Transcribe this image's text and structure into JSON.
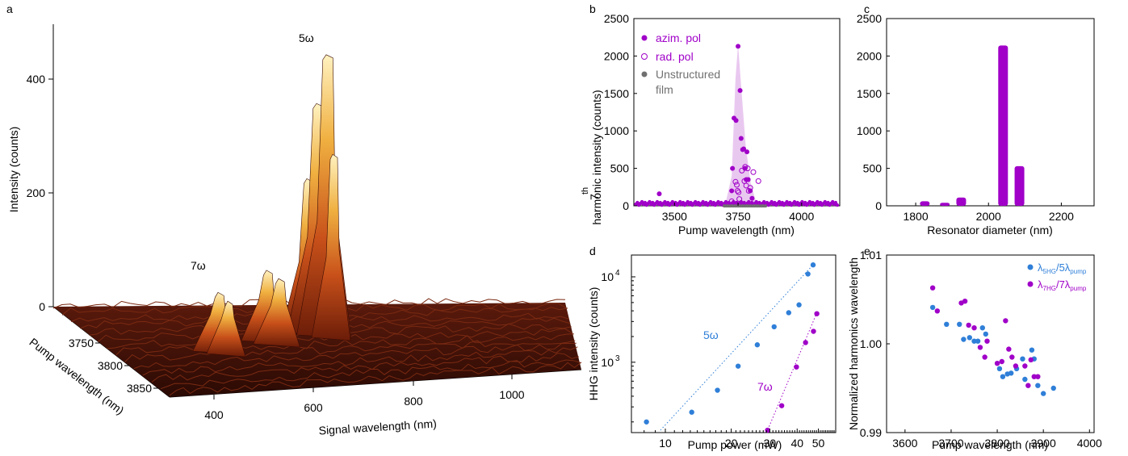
{
  "colors": {
    "purple": "#a000c8",
    "blue": "#2f7fd8",
    "gray": "#707070",
    "shade": "#e9c8f0"
  },
  "chart_data": [
    {
      "panel": "a",
      "type": "area",
      "xlabel": "Signal wavelength (nm)",
      "ylabel": "Pump wavelength (nm)",
      "zlabel": "Intensity (counts)",
      "x_ticks": [
        "400",
        "600",
        "800",
        "1000"
      ],
      "y_ticks": [
        "3750",
        "3800",
        "3850"
      ],
      "z_ticks": [
        "0",
        "200",
        "400"
      ],
      "annotations": [
        "5ω",
        "7ω"
      ],
      "peaks": [
        {
          "label": "5ω",
          "signal_wavelength": 750,
          "pump_wavelength": 3750,
          "intensity": 450
        },
        {
          "label": "7ω",
          "signal_wavelength": 535,
          "pump_wavelength": 3760,
          "intensity": 110
        }
      ]
    },
    {
      "panel": "b",
      "type": "scatter",
      "xlabel": "Pump wavelength (nm)",
      "ylabel_sup": "th",
      "ylabel_pre": "7",
      "ylabel": "harmonic intensity (counts)",
      "xlim": [
        3340,
        4150
      ],
      "ylim": [
        0,
        2500
      ],
      "x_ticks": [
        3500,
        3750,
        4000
      ],
      "y_ticks": [
        0,
        500,
        1000,
        1500,
        2000,
        2500
      ],
      "legend": [
        "azim. pol",
        "rad. pol",
        "Unstructured",
        "film"
      ],
      "series": [
        {
          "name": "azim. pol",
          "style": "filled",
          "points": [
            [
              3440,
              160
            ],
            [
              3725,
              200
            ],
            [
              3728,
              500
            ],
            [
              3734,
              1170
            ],
            [
              3742,
              1140
            ],
            [
              3750,
              2130
            ],
            [
              3758,
              1540
            ],
            [
              3762,
              900
            ],
            [
              3768,
              750
            ],
            [
              3772,
              760
            ],
            [
              3777,
              500
            ],
            [
              3782,
              350
            ],
            [
              3785,
              720
            ],
            [
              3790,
              350
            ],
            [
              3798,
              200
            ],
            [
              3805,
              100
            ]
          ]
        },
        {
          "name": "rad. pol",
          "style": "open",
          "points": [
            [
              3740,
              320
            ],
            [
              3745,
              280
            ],
            [
              3748,
              200
            ],
            [
              3752,
              180
            ],
            [
              3755,
              90
            ],
            [
              3765,
              470
            ],
            [
              3775,
              330
            ],
            [
              3778,
              520
            ],
            [
              3782,
              270
            ],
            [
              3788,
              500
            ],
            [
              3792,
              200
            ],
            [
              3798,
              240
            ],
            [
              3810,
              450
            ],
            [
              3830,
              330
            ],
            [
              3725,
              60
            ]
          ]
        }
      ],
      "baseline": {
        "name": "Unstructured film",
        "y": 10
      }
    },
    {
      "panel": "c",
      "type": "bar",
      "xlabel": "Resonator diameter (nm)",
      "xlim": [
        1720,
        2290
      ],
      "ylim": [
        0,
        2500
      ],
      "x_ticks": [
        1800,
        2000,
        2200
      ],
      "y_ticks": [
        0,
        500,
        1000,
        1500,
        2000,
        2500
      ],
      "x": [
        1825,
        1880,
        1925,
        2040,
        2085
      ],
      "values": [
        60,
        40,
        110,
        2140,
        530
      ]
    },
    {
      "panel": "d",
      "type": "scatter",
      "xlabel": "Pump power (mW)",
      "ylabel": "HHG intensity (counts)",
      "log_x": true,
      "log_y": true,
      "xlim": [
        7,
        60
      ],
      "ylim": [
        150,
        18000
      ],
      "x_ticks": [
        10,
        20,
        30,
        40,
        50
      ],
      "x_tick_labels": [
        "10",
        "20",
        "30",
        "40",
        "50"
      ],
      "y_ticks": [
        1000,
        10000
      ],
      "annotations": [
        "5ω",
        "7ω"
      ],
      "series": [
        {
          "name": "5ω",
          "color_key": "blue",
          "points": [
            [
              8.2,
              200
            ],
            [
              13.2,
              260
            ],
            [
              17.3,
              470
            ],
            [
              21.5,
              900
            ],
            [
              26.3,
              1600
            ],
            [
              31.4,
              2600
            ],
            [
              36.6,
              3800
            ],
            [
              40.8,
              4700
            ],
            [
              44.8,
              10800
            ],
            [
              47.3,
              13800
            ]
          ]
        },
        {
          "name": "7ω",
          "color_key": "purple",
          "points": [
            [
              29.3,
              160
            ],
            [
              34.0,
              310
            ],
            [
              39.7,
              880
            ],
            [
              43.7,
              1700
            ],
            [
              47.5,
              2300
            ],
            [
              49.2,
              3700
            ]
          ]
        }
      ]
    },
    {
      "panel": "e",
      "type": "scatter",
      "xlabel": "Pump wavelength (nm)",
      "ylabel": "Normalized harmonics wavelength",
      "xlim": [
        3560,
        4010
      ],
      "ylim": [
        0.99,
        1.01
      ],
      "x_ticks": [
        3600,
        3700,
        3800,
        3900,
        4000
      ],
      "y_ticks": [
        0.99,
        1.0,
        1.01
      ],
      "y_tick_labels": [
        "0.99",
        "1.00",
        "1.01"
      ],
      "legend": [
        {
          "lambda": "λ",
          "sub": "5HG",
          "mid": "/5λ",
          "sub2": "pump"
        },
        {
          "lambda": "λ",
          "sub": "7HG",
          "mid": "/7λ",
          "sub2": "pump"
        }
      ],
      "series": [
        {
          "name": "5HG",
          "color_key": "blue",
          "points": [
            [
              3660,
              1.0041
            ],
            [
              3690,
              1.0022
            ],
            [
              3718,
              1.0022
            ],
            [
              3727,
              1.0005
            ],
            [
              3740,
              1.0007
            ],
            [
              3750,
              1.0003
            ],
            [
              3758,
              1.0003
            ],
            [
              3768,
              1.0018
            ],
            [
              3775,
              1.0011
            ],
            [
              3805,
              0.9972
            ],
            [
              3812,
              0.9963
            ],
            [
              3822,
              0.9966
            ],
            [
              3830,
              0.9967
            ],
            [
              3842,
              0.9972
            ],
            [
              3855,
              0.9983
            ],
            [
              3860,
              0.996
            ],
            [
              3875,
              0.9993
            ],
            [
              3880,
              0.9983
            ],
            [
              3888,
              0.9953
            ],
            [
              3900,
              0.9944
            ],
            [
              3922,
              0.995
            ]
          ]
        },
        {
          "name": "7HG",
          "color_key": "purple",
          "points": [
            [
              3660,
              1.0063
            ],
            [
              3670,
              1.0037
            ],
            [
              3722,
              1.0046
            ],
            [
              3730,
              1.0048
            ],
            [
              3738,
              1.0021
            ],
            [
              3750,
              1.0018
            ],
            [
              3763,
              0.9996
            ],
            [
              3773,
              0.9985
            ],
            [
              3778,
              1.0003
            ],
            [
              3800,
              0.9978
            ],
            [
              3810,
              0.998
            ],
            [
              3818,
              1.0026
            ],
            [
              3825,
              0.9994
            ],
            [
              3832,
              0.9985
            ],
            [
              3840,
              0.9975
            ],
            [
              3860,
              0.9975
            ],
            [
              3867,
              0.9953
            ],
            [
              3873,
              0.9982
            ],
            [
              3880,
              0.9963
            ],
            [
              3888,
              0.9963
            ]
          ]
        }
      ]
    }
  ]
}
